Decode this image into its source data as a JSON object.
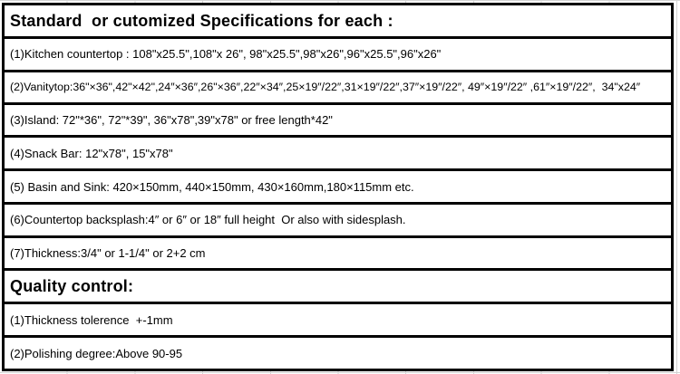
{
  "colors": {
    "background": "#ffffff",
    "table_border": "#000000",
    "text": "#000000",
    "grid_line": "#d4d4d4"
  },
  "table": {
    "rows": [
      {
        "type": "section_header",
        "text": "Standard  or cutomized Specifications for each :"
      },
      {
        "type": "data",
        "text": "(1)Kitchen countertop : 108\"x25.5\",108\"x 26\", 98\"x25.5\",98\"x26\",96\"x25.5\",96\"x26\""
      },
      {
        "type": "data",
        "text": "(2)Vanitytop:36\"×36\",42\"×42\",24″×36″,26\"×36″,22″×34″,25×19″/22″,31×19″/22″,37″×19″/22″, 49″×19″/22″ ,61″×19″/22″,  34\"x24″"
      },
      {
        "type": "data",
        "text": "(3)Island: 72\"*36\", 72\"*39\", 36\"x78\",39\"x78\" or free length*42\""
      },
      {
        "type": "data",
        "text": "(4)Snack Bar: 12\"x78\", 15\"x78\""
      },
      {
        "type": "data",
        "text": "(5) Basin and Sink: 420×150mm, 440×150mm, 430×160mm,180×115mm etc."
      },
      {
        "type": "data",
        "text": "(6)Countertop backsplash:4″ or 6″ or 18″ full height  Or also with sidesplash."
      },
      {
        "type": "data",
        "text": "(7)Thickness:3/4\" or 1-1/4\" or 2+2 cm"
      },
      {
        "type": "section_header",
        "text": "Quality control:"
      },
      {
        "type": "data",
        "text": "(1)Thickness tolerence  +-1mm"
      },
      {
        "type": "data",
        "text": "(2)Polishing degree:Above 90-95"
      }
    ]
  }
}
